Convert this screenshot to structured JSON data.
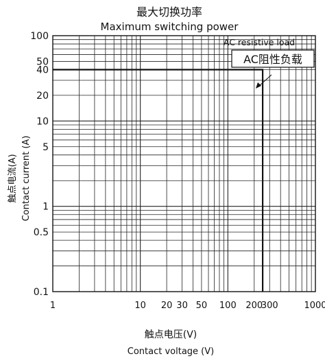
{
  "chart_data": {
    "type": "line",
    "title": "最大切换功率",
    "subtitle": "Maximum switching power",
    "xlabel": "触点电压(V)",
    "xlabel_en": "Contact voltage (V)",
    "ylabel": "触点电流(A)",
    "ylabel_en": "Contact current (A)",
    "x_scale": "log",
    "y_scale": "log",
    "xlim": [
      1,
      1000
    ],
    "ylim": [
      0.1,
      100
    ],
    "x_ticks": [
      {
        "value": 1,
        "label": "1"
      },
      {
        "value": 10,
        "label": "10"
      },
      {
        "value": 20,
        "label": "20"
      },
      {
        "value": 30,
        "label": "30"
      },
      {
        "value": 50,
        "label": "50"
      },
      {
        "value": 100,
        "label": "100"
      },
      {
        "value": 200,
        "label": "200"
      },
      {
        "value": 300,
        "label": "300"
      },
      {
        "value": 1000,
        "label": "1000"
      }
    ],
    "y_ticks": [
      {
        "value": 100,
        "label": "100"
      },
      {
        "value": 50,
        "label": "50"
      },
      {
        "value": 40,
        "label": "40"
      },
      {
        "value": 20,
        "label": "20"
      },
      {
        "value": 10,
        "label": "10"
      },
      {
        "value": 5,
        "label": "5"
      },
      {
        "value": 1,
        "label": "1"
      },
      {
        "value": 0.5,
        "label": "0.5"
      },
      {
        "value": 0.1,
        "label": "0.1"
      }
    ],
    "grid": true,
    "series": [
      {
        "x": [
          1,
          250,
          250
        ],
        "y": [
          40,
          40,
          0.1
        ],
        "color": "#111111"
      }
    ],
    "annotations": {
      "legend_text": "AC resistive load",
      "label_box": "AC阻性负载"
    }
  }
}
